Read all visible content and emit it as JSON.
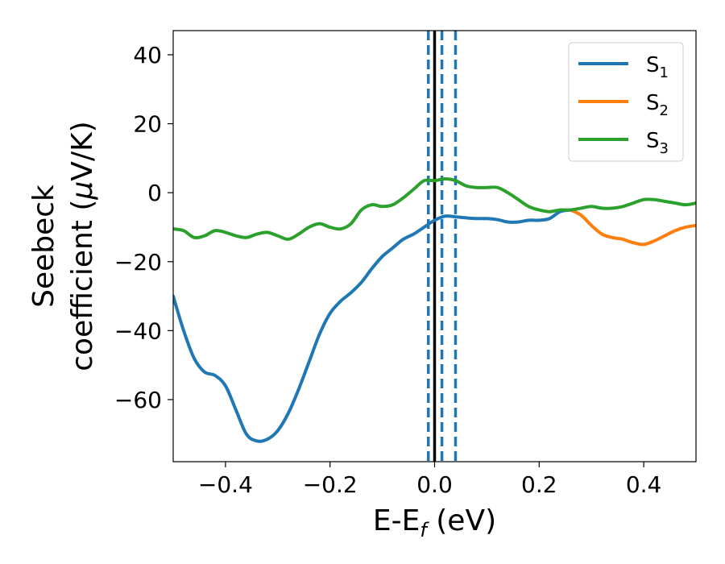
{
  "chart_data": {
    "type": "line",
    "xlabel": {
      "main": "E-E",
      "sub": "f",
      "unit": " (eV)"
    },
    "ylabel": {
      "line1": "Seebeck",
      "line2_prefix": "coefficient  (",
      "mu": "μ",
      "line2_suffix": "V/K)"
    },
    "xlim": [
      -0.5,
      0.5
    ],
    "ylim": [
      -78,
      47
    ],
    "xticks": [
      {
        "value": -0.4,
        "label": "−0.4"
      },
      {
        "value": -0.2,
        "label": "−0.2"
      },
      {
        "value": 0.0,
        "label": "0.0"
      },
      {
        "value": 0.2,
        "label": "0.2"
      },
      {
        "value": 0.4,
        "label": "0.4"
      }
    ],
    "yticks": [
      {
        "value": 40,
        "label": "40"
      },
      {
        "value": 20,
        "label": "20"
      },
      {
        "value": 0,
        "label": "0"
      },
      {
        "value": -20,
        "label": "−20"
      },
      {
        "value": -40,
        "label": "−40"
      },
      {
        "value": -60,
        "label": "−60"
      }
    ],
    "grid": false,
    "legend_position": "top-right",
    "vlines": [
      {
        "x": 0.0,
        "style": "solid",
        "color": "#000000"
      },
      {
        "x": -0.012,
        "style": "dashed",
        "color": "#1f77b4"
      },
      {
        "x": 0.014,
        "style": "dashed",
        "color": "#1f77b4"
      },
      {
        "x": 0.04,
        "style": "dashed",
        "color": "#1f77b4"
      }
    ],
    "series": [
      {
        "name": "S",
        "sub": "1",
        "color": "#1f77b4",
        "x": [
          -0.5,
          -0.48,
          -0.46,
          -0.44,
          -0.42,
          -0.4,
          -0.38,
          -0.36,
          -0.34,
          -0.32,
          -0.3,
          -0.28,
          -0.26,
          -0.24,
          -0.22,
          -0.2,
          -0.18,
          -0.16,
          -0.14,
          -0.12,
          -0.1,
          -0.08,
          -0.06,
          -0.04,
          -0.02,
          0.0,
          0.02,
          0.04,
          0.06,
          0.08,
          0.1,
          0.12,
          0.14,
          0.16,
          0.18,
          0.2,
          0.22,
          0.24,
          0.26
        ],
        "y": [
          -30,
          -40,
          -48,
          -52,
          -53,
          -56,
          -63,
          -70,
          -72,
          -71.5,
          -69,
          -64,
          -57,
          -49,
          -41,
          -35,
          -31.5,
          -29,
          -26,
          -22,
          -18.5,
          -16,
          -13.5,
          -12,
          -10,
          -8,
          -6.8,
          -7,
          -7.3,
          -7.5,
          -7.5,
          -7.8,
          -8.5,
          -8.5,
          -8,
          -8,
          -7.5,
          -5.5,
          -5
        ]
      },
      {
        "name": "S",
        "sub": "2",
        "color": "#ff7f0e",
        "x": [
          0.26,
          0.28,
          0.3,
          0.32,
          0.34,
          0.36,
          0.38,
          0.4,
          0.42,
          0.44,
          0.46,
          0.48,
          0.5
        ],
        "y": [
          -5,
          -6.5,
          -9.5,
          -12,
          -13,
          -13.5,
          -14.5,
          -15,
          -14,
          -12.5,
          -11,
          -10,
          -9.5
        ]
      },
      {
        "name": "S",
        "sub": "3",
        "color": "#2ca02c",
        "x": [
          -0.5,
          -0.48,
          -0.46,
          -0.44,
          -0.42,
          -0.4,
          -0.38,
          -0.36,
          -0.34,
          -0.32,
          -0.3,
          -0.28,
          -0.26,
          -0.24,
          -0.22,
          -0.2,
          -0.18,
          -0.16,
          -0.14,
          -0.12,
          -0.1,
          -0.08,
          -0.06,
          -0.04,
          -0.02,
          0.0,
          0.02,
          0.04,
          0.06,
          0.08,
          0.1,
          0.12,
          0.14,
          0.16,
          0.18,
          0.2,
          0.22,
          0.24,
          0.26,
          0.28,
          0.3,
          0.32,
          0.34,
          0.36,
          0.38,
          0.4,
          0.42,
          0.44,
          0.46,
          0.48,
          0.5
        ],
        "y": [
          -10.5,
          -11,
          -13,
          -12.5,
          -11,
          -11.5,
          -12.5,
          -13,
          -12,
          -11.5,
          -12.5,
          -13.5,
          -12,
          -10,
          -9,
          -10,
          -10.5,
          -9,
          -5,
          -3.5,
          -4,
          -3.5,
          -1.5,
          1,
          3.5,
          3.5,
          4,
          3.5,
          2,
          1.5,
          1.5,
          1.5,
          0,
          -2,
          -4,
          -5,
          -5.5,
          -5,
          -5,
          -4.5,
          -4,
          -4.5,
          -4.5,
          -4,
          -3,
          -2,
          -2,
          -2.5,
          -3,
          -3.5,
          -3
        ]
      }
    ]
  }
}
